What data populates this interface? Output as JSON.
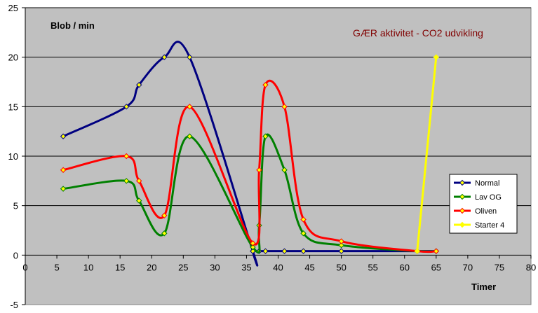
{
  "chart_data": {
    "type": "line",
    "title": "GÆR aktivitet - CO2 udvikling",
    "ylabel": "Blob / min",
    "xlabel": "Timer",
    "xlim": [
      0,
      80
    ],
    "ylim": [
      -5,
      25
    ],
    "xticks": [
      0,
      5,
      10,
      15,
      20,
      25,
      30,
      35,
      40,
      45,
      50,
      55,
      60,
      65,
      70,
      75,
      80
    ],
    "yticks": [
      -5,
      0,
      5,
      10,
      15,
      20,
      25
    ],
    "grid": "horizontal",
    "legend_position": "bottom-right",
    "colors": {
      "plot_background": "#c0c0c0",
      "marker_fill": "#ffff00"
    },
    "series": [
      {
        "name": "Normal",
        "color": "#000080",
        "x": [
          6,
          16,
          18,
          22,
          26,
          36,
          36,
          37,
          38,
          41,
          44,
          50,
          62,
          65
        ],
        "y": [
          12,
          15,
          17.2,
          20,
          20,
          0.4,
          0.4,
          0.4,
          0.4,
          0.4,
          0.4,
          0.4,
          0.4,
          0.4
        ]
      },
      {
        "name": "Lav OG",
        "color": "#008000",
        "x": [
          6,
          16,
          18,
          22,
          26,
          36,
          37,
          38,
          41,
          44,
          50,
          62,
          65
        ],
        "y": [
          6.7,
          7.5,
          5.5,
          2.2,
          12,
          0.8,
          3,
          12,
          8.6,
          2.2,
          1,
          0.4,
          0.4
        ]
      },
      {
        "name": "Oliven",
        "color": "#ff0000",
        "x": [
          6,
          16,
          18,
          22,
          26,
          36,
          37,
          38,
          41,
          44,
          50,
          62,
          65
        ],
        "y": [
          8.6,
          10,
          7.5,
          4,
          15,
          1.2,
          8.6,
          17.2,
          15,
          3.6,
          1.4,
          0.4,
          0.4
        ]
      },
      {
        "name": "Starter 4",
        "color": "#ffff00",
        "x": [
          62,
          65
        ],
        "y": [
          0.4,
          20
        ]
      }
    ]
  }
}
